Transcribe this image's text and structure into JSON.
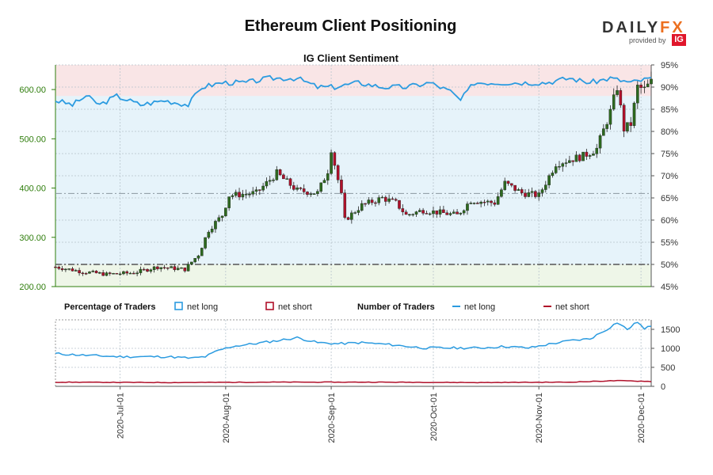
{
  "title": "Ethereum Client Positioning",
  "logo": {
    "word_main": "DAILY",
    "word_accent": "FX",
    "byline": "provided by",
    "badge": "IG"
  },
  "colors": {
    "net_long": "#2b9be0",
    "net_short": "#b0102a",
    "candle_up": "#2d6a1f",
    "candle_down": "#b0102a",
    "long_zone": "#e6f3fa",
    "short_zone": "#fbe3e3",
    "price_axis": "#2e7d0b"
  },
  "legend": {
    "percentage_label": "Percentage of Traders",
    "number_label": "Number of Traders",
    "net_long": "net long",
    "net_short": "net short"
  },
  "chart_data": [
    {
      "type": "candlestick",
      "title": "IG Client Sentiment",
      "x_dates": [
        "2020-Jul-01",
        "2020-Aug-01",
        "2020-Sep-01",
        "2020-Oct-01",
        "2020-Nov-01",
        "2020-Dec-01"
      ],
      "x_start": "2020-06-12",
      "x_end": "2020-12-04",
      "price_axis": {
        "ylim": [
          200,
          650
        ],
        "ticks": [
          "200.00",
          "300.00",
          "400.00",
          "500.00",
          "600.00"
        ]
      },
      "percent_axis": {
        "ylim": [
          45,
          95
        ],
        "ticks": [
          "45%",
          "50%",
          "55%",
          "60%",
          "65%",
          "70%",
          "75%",
          "80%",
          "85%",
          "90%",
          "95%"
        ]
      },
      "reference_lines_percent": [
        50,
        66
      ],
      "price_checkpoints": [
        [
          "2020-06-12",
          240
        ],
        [
          "2020-06-20",
          230
        ],
        [
          "2020-06-27",
          225
        ],
        [
          "2020-07-05",
          228
        ],
        [
          "2020-07-12",
          240
        ],
        [
          "2020-07-20",
          235
        ],
        [
          "2020-07-24",
          265
        ],
        [
          "2020-07-27",
          315
        ],
        [
          "2020-07-31",
          345
        ],
        [
          "2020-08-02",
          385
        ],
        [
          "2020-08-10",
          390
        ],
        [
          "2020-08-16",
          430
        ],
        [
          "2020-08-22",
          395
        ],
        [
          "2020-08-28",
          390
        ],
        [
          "2020-08-31",
          435
        ],
        [
          "2020-09-01",
          480
        ],
        [
          "2020-09-04",
          385
        ],
        [
          "2020-09-05",
          335
        ],
        [
          "2020-09-10",
          365
        ],
        [
          "2020-09-16",
          380
        ],
        [
          "2020-09-20",
          370
        ],
        [
          "2020-09-23",
          345
        ],
        [
          "2020-09-28",
          355
        ],
        [
          "2020-10-08",
          345
        ],
        [
          "2020-10-12",
          375
        ],
        [
          "2020-10-19",
          370
        ],
        [
          "2020-10-22",
          410
        ],
        [
          "2020-10-27",
          390
        ],
        [
          "2020-11-01",
          385
        ],
        [
          "2020-11-06",
          450
        ],
        [
          "2020-11-14",
          465
        ],
        [
          "2020-11-18",
          480
        ],
        [
          "2020-11-22",
          555
        ],
        [
          "2020-11-24",
          605
        ],
        [
          "2020-11-26",
          520
        ],
        [
          "2020-11-28",
          530
        ],
        [
          "2020-11-30",
          605
        ],
        [
          "2020-12-02",
          600
        ],
        [
          "2020-12-04",
          615
        ]
      ],
      "net_long_percent": [
        [
          "2020-06-12",
          87
        ],
        [
          "2020-06-17",
          86
        ],
        [
          "2020-06-21",
          88
        ],
        [
          "2020-06-25",
          86
        ],
        [
          "2020-06-30",
          88
        ],
        [
          "2020-07-07",
          86
        ],
        [
          "2020-07-14",
          87
        ],
        [
          "2020-07-21",
          86
        ],
        [
          "2020-07-25",
          90
        ],
        [
          "2020-07-31",
          91
        ],
        [
          "2020-08-07",
          91
        ],
        [
          "2020-08-14",
          92
        ],
        [
          "2020-08-22",
          92
        ],
        [
          "2020-08-28",
          90
        ],
        [
          "2020-09-02",
          90
        ],
        [
          "2020-09-09",
          91
        ],
        [
          "2020-09-16",
          90
        ],
        [
          "2020-09-23",
          90
        ],
        [
          "2020-09-30",
          91
        ],
        [
          "2020-10-06",
          89
        ],
        [
          "2020-10-09",
          87
        ],
        [
          "2020-10-13",
          91
        ],
        [
          "2020-10-20",
          91
        ],
        [
          "2020-10-27",
          91
        ],
        [
          "2020-11-03",
          91
        ],
        [
          "2020-11-10",
          92
        ],
        [
          "2020-11-16",
          91
        ],
        [
          "2020-11-22",
          92
        ],
        [
          "2020-11-28",
          91
        ],
        [
          "2020-12-04",
          92
        ]
      ]
    },
    {
      "type": "line",
      "title": "Number of Traders",
      "y_axis": {
        "ylim": [
          0,
          1750
        ],
        "ticks": [
          "0",
          "500",
          "1000",
          "1500"
        ]
      },
      "series": [
        {
          "name": "net long",
          "values": [
            [
              "2020-06-12",
              860
            ],
            [
              "2020-06-20",
              820
            ],
            [
              "2020-07-01",
              780
            ],
            [
              "2020-07-15",
              780
            ],
            [
              "2020-07-22",
              740
            ],
            [
              "2020-07-26",
              780
            ],
            [
              "2020-07-30",
              950
            ],
            [
              "2020-08-03",
              1050
            ],
            [
              "2020-08-10",
              1130
            ],
            [
              "2020-08-16",
              1200
            ],
            [
              "2020-08-22",
              1280
            ],
            [
              "2020-08-28",
              1150
            ],
            [
              "2020-09-03",
              1120
            ],
            [
              "2020-09-10",
              1150
            ],
            [
              "2020-09-18",
              1100
            ],
            [
              "2020-09-28",
              1010
            ],
            [
              "2020-10-08",
              1010
            ],
            [
              "2020-10-15",
              1010
            ],
            [
              "2020-10-22",
              1050
            ],
            [
              "2020-10-29",
              1010
            ],
            [
              "2020-11-04",
              1110
            ],
            [
              "2020-11-10",
              1200
            ],
            [
              "2020-11-16",
              1250
            ],
            [
              "2020-11-21",
              1500
            ],
            [
              "2020-11-24",
              1680
            ],
            [
              "2020-11-27",
              1500
            ],
            [
              "2020-11-30",
              1700
            ],
            [
              "2020-12-02",
              1500
            ],
            [
              "2020-12-04",
              1600
            ]
          ]
        },
        {
          "name": "net short",
          "values": [
            [
              "2020-06-12",
              110
            ],
            [
              "2020-07-15",
              100
            ],
            [
              "2020-08-15",
              110
            ],
            [
              "2020-09-15",
              110
            ],
            [
              "2020-10-15",
              100
            ],
            [
              "2020-11-10",
              110
            ],
            [
              "2020-11-24",
              150
            ],
            [
              "2020-12-04",
              130
            ]
          ]
        }
      ]
    }
  ]
}
